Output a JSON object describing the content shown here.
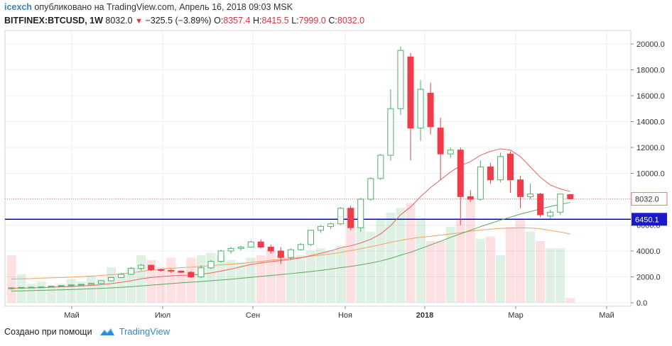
{
  "header": {
    "author": "icexch",
    "published_text": "опубликовано на TradingView.com, Апрель 16, 2018 09:03 MSK",
    "symbol": "BITFINEX:BTCUSD, 1W",
    "last": "8032.0",
    "change": "−325.5 (−3.89%)",
    "o_label": "O:",
    "o_val": "8357.4",
    "h_label": "H:",
    "h_val": "8415.5",
    "l_label": "L:",
    "l_val": "7999.0",
    "c_label": "C:",
    "c_val": "8032.0"
  },
  "footer": {
    "created_with": "Создано при помощи",
    "brand": "TradingView"
  },
  "colors": {
    "up": "#4fb06a",
    "down": "#ef3c4b",
    "ma_fast": "#f06060",
    "ma_slow": "#5aa85a",
    "ma_volume": "#f0a060",
    "level_line": "#0000cc",
    "price_line": "#e87878"
  },
  "chart_data": {
    "type": "candlestick",
    "y_axis": {
      "min": 0,
      "max": 20000,
      "ticks": [
        "20000.0",
        "18000.0",
        "16000.0",
        "14000.0",
        "12000.0",
        "10000.0",
        "8000.0",
        "6000.0",
        "4000.0",
        "2000.0",
        "0.0"
      ]
    },
    "x_axis": {
      "ticks": [
        "Май",
        "Июл",
        "Сен",
        "Ноя",
        "2018",
        "Мар",
        "Май"
      ]
    },
    "last_price_label": "8032.0",
    "level_label": "6450.1",
    "level_value": 6450.1,
    "candles": [
      [
        1100,
        1200,
        1000,
        1150
      ],
      [
        1150,
        1200,
        1100,
        1180
      ],
      [
        1180,
        1250,
        1150,
        1200
      ],
      [
        1200,
        1250,
        1150,
        1220
      ],
      [
        1220,
        1300,
        1200,
        1280
      ],
      [
        1280,
        1350,
        1250,
        1320
      ],
      [
        1320,
        1400,
        1280,
        1380
      ],
      [
        1380,
        1450,
        1350,
        1420
      ],
      [
        1420,
        1550,
        1400,
        1500
      ],
      [
        1500,
        1750,
        1480,
        1700
      ],
      [
        1700,
        2000,
        1650,
        1950
      ],
      [
        1950,
        2300,
        1900,
        2200
      ],
      [
        2200,
        2750,
        2150,
        2650
      ],
      [
        2650,
        3000,
        2500,
        2900
      ],
      [
        2900,
        2950,
        2450,
        2550
      ],
      [
        2550,
        2600,
        2400,
        2500
      ],
      [
        2500,
        2600,
        2300,
        2450
      ],
      [
        2450,
        2500,
        2300,
        2350
      ],
      [
        2350,
        2450,
        1900,
        2000
      ],
      [
        2000,
        2900,
        1900,
        2700
      ],
      [
        2700,
        3300,
        2600,
        3200
      ],
      [
        3200,
        4100,
        3100,
        4000
      ],
      [
        4000,
        4300,
        3800,
        4200
      ],
      [
        4200,
        4400,
        4050,
        4300
      ],
      [
        4300,
        4800,
        4250,
        4700
      ],
      [
        4700,
        4900,
        4200,
        4300
      ],
      [
        4300,
        4500,
        3800,
        4000
      ],
      [
        4000,
        4300,
        3000,
        3500
      ],
      [
        3500,
        4200,
        3300,
        4100
      ],
      [
        4100,
        4600,
        4050,
        4500
      ],
      [
        4500,
        5600,
        4400,
        5600
      ],
      [
        5600,
        6000,
        5400,
        5900
      ],
      [
        5900,
        6200,
        5700,
        6100
      ],
      [
        6100,
        7400,
        6000,
        7300
      ],
      [
        7300,
        7500,
        5600,
        5800
      ],
      [
        5800,
        8100,
        5500,
        8000
      ],
      [
        8000,
        9700,
        7900,
        9600
      ],
      [
        9600,
        11500,
        9500,
        11400
      ],
      [
        11400,
        16500,
        11000,
        15000
      ],
      [
        15000,
        19800,
        14500,
        19500
      ],
      [
        19000,
        19300,
        11000,
        13500
      ],
      [
        13500,
        17200,
        12500,
        16500
      ],
      [
        16200,
        17000,
        13000,
        13600
      ],
      [
        13500,
        14300,
        9500,
        11500
      ],
      [
        11500,
        12000,
        11200,
        11800
      ],
      [
        11800,
        12000,
        6000,
        8200
      ],
      [
        8200,
        8700,
        7800,
        8000
      ],
      [
        8000,
        11000,
        7900,
        10500
      ],
      [
        10500,
        10800,
        9200,
        9500
      ],
      [
        9500,
        11600,
        9300,
        11300
      ],
      [
        11500,
        11700,
        8500,
        9500
      ],
      [
        9500,
        9800,
        7300,
        8200
      ],
      [
        8200,
        9200,
        8000,
        8400
      ],
      [
        8400,
        8500,
        6600,
        6800
      ],
      [
        6700,
        7200,
        6500,
        7000
      ],
      [
        7000,
        8400,
        6800,
        8400
      ],
      [
        8357.4,
        8415.5,
        7999,
        8032
      ]
    ],
    "ma_fast": [
      1100,
      1130,
      1150,
      1170,
      1200,
      1230,
      1260,
      1300,
      1340,
      1400,
      1480,
      1580,
      1700,
      1850,
      1950,
      2020,
      2080,
      2120,
      2140,
      2200,
      2300,
      2450,
      2600,
      2780,
      2950,
      3080,
      3180,
      3260,
      3350,
      3470,
      3640,
      3820,
      4010,
      4250,
      4400,
      4620,
      4900,
      5320,
      5950,
      6800,
      7400,
      8200,
      8900,
      9500,
      10100,
      10600,
      10900,
      11400,
      11700,
      11900,
      11800,
      11300,
      10500,
      9700,
      9100,
      8800,
      8600
    ],
    "ma_slow": [
      900,
      920,
      940,
      960,
      980,
      1000,
      1020,
      1050,
      1080,
      1110,
      1150,
      1190,
      1240,
      1300,
      1360,
      1420,
      1480,
      1540,
      1590,
      1640,
      1700,
      1760,
      1820,
      1890,
      1960,
      2040,
      2110,
      2180,
      2250,
      2330,
      2410,
      2500,
      2600,
      2710,
      2810,
      2930,
      3070,
      3230,
      3430,
      3680,
      3900,
      4180,
      4470,
      4750,
      5050,
      5330,
      5600,
      5880,
      6130,
      6380,
      6620,
      6850,
      7050,
      7250,
      7440,
      7600,
      7750
    ],
    "volume": [
      2000,
      1200,
      800,
      900,
      700,
      800,
      1000,
      900,
      1100,
      1000,
      1500,
      1200,
      1500,
      2000,
      1800,
      1500,
      1900,
      1300,
      1900,
      2000,
      2100,
      2000,
      1800,
      1700,
      1900,
      2000,
      2200,
      2000,
      1800,
      2000,
      2200,
      2300,
      2200,
      2400,
      4000,
      3200,
      3000,
      3500,
      3800,
      4000,
      4200,
      3500,
      2600,
      2600,
      3200,
      3500,
      4400,
      2700,
      2800,
      2000,
      3200,
      3500,
      3000,
      2600,
      2300,
      2300,
      200
    ],
    "volume_up": [
      false,
      true,
      true,
      true,
      true,
      true,
      true,
      true,
      true,
      true,
      true,
      true,
      true,
      true,
      false,
      false,
      false,
      false,
      false,
      true,
      true,
      true,
      true,
      true,
      true,
      false,
      false,
      false,
      true,
      true,
      true,
      true,
      true,
      true,
      false,
      true,
      true,
      true,
      true,
      true,
      false,
      true,
      false,
      false,
      true,
      false,
      false,
      true,
      false,
      true,
      false,
      false,
      true,
      false,
      true,
      true,
      false
    ],
    "volume_ma": [
      1000,
      1010,
      1020,
      1040,
      1050,
      1060,
      1080,
      1100,
      1120,
      1150,
      1180,
      1220,
      1260,
      1320,
      1380,
      1420,
      1450,
      1480,
      1500,
      1530,
      1560,
      1600,
      1630,
      1660,
      1700,
      1740,
      1790,
      1830,
      1870,
      1910,
      1960,
      2010,
      2060,
      2120,
      2200,
      2280,
      2360,
      2450,
      2550,
      2630,
      2700,
      2760,
      2800,
      2850,
      2900,
      2950,
      3020,
      3060,
      3100,
      3130,
      3150,
      3160,
      3150,
      3120,
      3050,
      2980,
      2900
    ]
  }
}
